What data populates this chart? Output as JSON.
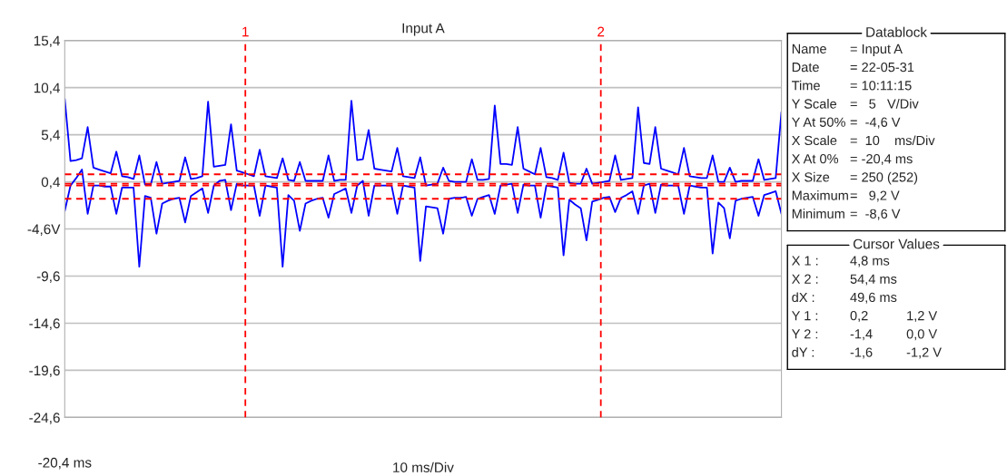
{
  "chart_data": {
    "type": "line",
    "title": "Input A",
    "xlabel": "10 ms/Div",
    "categories": [
      null,
      null,
      null,
      null,
      null,
      null,
      null,
      null,
      null,
      null,
      null,
      null,
      null,
      null,
      null,
      null,
      null,
      null,
      null,
      null,
      null,
      null,
      null,
      null,
      null,
      null,
      null,
      null,
      null,
      null,
      null,
      null,
      null,
      null,
      null,
      null,
      null,
      null,
      null,
      null,
      null,
      null,
      null,
      null,
      null,
      null,
      null,
      null,
      null,
      null,
      null,
      null,
      null,
      null,
      null,
      null,
      null,
      null,
      null,
      null,
      null,
      null,
      null,
      null,
      null,
      null,
      null,
      null,
      null,
      null,
      null,
      null,
      null,
      null,
      null,
      null,
      null,
      null,
      null,
      null,
      null,
      null,
      null,
      null,
      null,
      null,
      null,
      null,
      null,
      null,
      null,
      null,
      null,
      null,
      null,
      null,
      null,
      null,
      null,
      null,
      null,
      null,
      null,
      null,
      null,
      null,
      null,
      null,
      null,
      null,
      null,
      null,
      null,
      null,
      null,
      null,
      null,
      null,
      null,
      null,
      null,
      null,
      null,
      null,
      null,
      null
    ],
    "ylim": [
      -24.6,
      15.4
    ],
    "yticks": [
      {
        "value": 15.4,
        "label": "15,4"
      },
      {
        "value": 10.4,
        "label": "10,4"
      },
      {
        "value": 5.4,
        "label": "5,4"
      },
      {
        "value": 0.4,
        "label": "0,4"
      },
      {
        "value": -4.6,
        "label": "-4,6V"
      },
      {
        "value": -9.6,
        "label": "-9,6"
      },
      {
        "value": -14.6,
        "label": "-14,6"
      },
      {
        "value": -19.6,
        "label": "-19,6"
      },
      {
        "value": -24.6,
        "label": "-24,6"
      }
    ],
    "grid": "y",
    "marker": "none",
    "line_style": "solid",
    "series": [
      {
        "color": "#0000ff",
        "values": [
          9.2,
          2.6,
          2.7,
          2.9,
          6.2,
          1.9,
          1.7,
          1.5,
          1.3,
          3.6,
          1.0,
          0.9,
          0.7,
          3.2,
          0.1,
          0.1,
          2.5,
          0.2,
          0.3,
          0.4,
          0.5,
          3.0,
          0.7,
          0.8,
          1.0,
          8.9,
          2.0,
          2.1,
          2.2,
          6.5,
          1.6,
          1.4,
          1.2,
          1.0,
          3.8,
          1.0,
          0.9,
          0.8,
          2.9,
          0.6,
          0.5,
          2.5,
          0.5,
          0.5,
          0.5,
          0.5,
          3.2,
          0.5,
          0.6,
          0.6,
          9.0,
          2.7,
          2.8,
          5.9,
          1.8,
          1.7,
          1.6,
          1.5,
          4.0,
          1.0,
          0.9,
          0.8,
          3.0,
          0.0,
          0.1,
          0.2,
          1.9,
          0.5,
          0.4,
          0.4,
          0.4,
          2.8,
          0.6,
          0.6,
          0.7,
          8.5,
          2.3,
          2.3,
          2.2,
          6.2,
          1.8,
          1.5,
          1.2,
          4.0,
          0.9,
          0.8,
          0.6,
          3.5,
          0.3,
          0.2,
          0.2,
          1.8,
          0.2,
          0.3,
          0.4,
          0.5,
          3.2,
          0.6,
          0.7,
          0.8,
          8.3,
          2.4,
          2.3,
          6.2,
          1.8,
          1.6,
          1.4,
          1.2,
          4.0,
          1.0,
          0.9,
          0.8,
          0.8,
          3.2,
          0.4,
          0.4,
          1.9,
          0.4,
          0.5,
          0.5,
          0.5,
          2.8,
          0.6,
          0.7,
          0.8,
          7.8
        ]
      },
      {
        "color": "#0000ff",
        "values": [
          -2.7,
          0.0,
          0.8,
          1.7,
          -3.0,
          0.0,
          0.0,
          -0.1,
          -0.1,
          -3.0,
          -0.2,
          -0.2,
          -0.2,
          -8.6,
          -1.1,
          -1.3,
          -5.1,
          -1.9,
          -1.6,
          -1.4,
          -1.3,
          -3.9,
          -1.1,
          -0.7,
          -0.3,
          -2.9,
          0.0,
          0.5,
          0.6,
          -2.6,
          0.2,
          0.0,
          0.0,
          0.0,
          -3.2,
          0.0,
          -0.1,
          -0.2,
          -8.6,
          -1.0,
          -1.6,
          -4.8,
          -1.9,
          -1.6,
          -1.4,
          -1.3,
          -3.4,
          -0.9,
          -0.6,
          -0.3,
          -2.9,
          0.0,
          0.5,
          -3.2,
          0.0,
          0.0,
          0.0,
          0.0,
          -3.0,
          0.0,
          -0.1,
          -0.2,
          -8.0,
          -2.2,
          -2.3,
          -2.4,
          -5.1,
          -1.4,
          -1.3,
          -1.3,
          -1.2,
          -3.2,
          -1.4,
          -1.2,
          -1.0,
          -3.0,
          0.0,
          0.1,
          0.2,
          -2.9,
          0.1,
          0.0,
          0.0,
          -3.4,
          0.0,
          -0.1,
          -0.2,
          -7.4,
          -1.5,
          -2.0,
          -2.4,
          -5.8,
          -1.7,
          -1.5,
          -1.3,
          -1.2,
          -2.8,
          -1.3,
          -1.0,
          -0.6,
          -3.0,
          0.0,
          0.2,
          -2.9,
          0.1,
          0.0,
          0.0,
          0.0,
          -3.0,
          0.0,
          -0.1,
          -0.2,
          -0.2,
          -7.2,
          -1.8,
          -2.4,
          -5.6,
          -1.6,
          -1.4,
          -1.3,
          -1.2,
          -3.2,
          -1.0,
          -0.8,
          -0.6,
          -3.0
        ]
      }
    ],
    "ref_lines": [
      {
        "axis": "y",
        "value": 1.2,
        "color": "#ff0000",
        "line_style": "dashed"
      },
      {
        "axis": "y",
        "value": 0.2,
        "color": "#ff0000",
        "line_style": "dashed"
      },
      {
        "axis": "y",
        "value": 0.0,
        "color": "#ff0000",
        "line_style": "dashed"
      },
      {
        "axis": "y",
        "value": -1.4,
        "color": "#ff0000",
        "line_style": "dashed"
      }
    ],
    "annotations": [
      "1",
      "2",
      "-20,4 ms",
      "Datablock",
      "Name\t= Input A\nDate\t= 22-05-31\nTime\t= 10:11:15\nY Scale\t=   5   V/Div\nY At 50%\t=  -4,6 V\nX Scale\t=  10    ms/Div\nX At 0%\t= -20,4 ms\nX Size\t= 250 (252)\nMaximum\t=   9,2 V\nMinimum\t=  -8,6 V",
      "Cursor Values",
      "X 1 :\t4,8 ms\nX 2 :\t54,4 ms\ndX :\t49,6 ms\nY 1 :\t0,2\t1,2 V\nY 2 :\t-1,4\t0,0 V\ndY :\t-1,6\t-1,2 V"
    ]
  }
}
